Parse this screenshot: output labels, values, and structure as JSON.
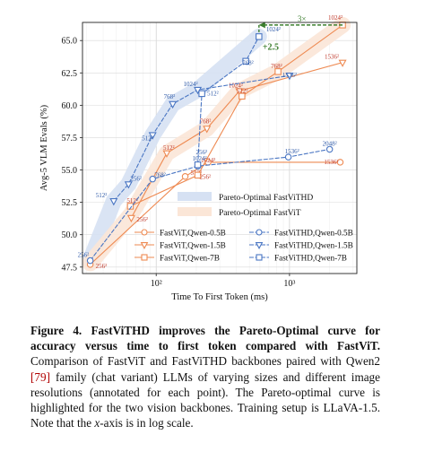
{
  "chart_data": {
    "type": "line",
    "xlabel": "Time To First Token (ms)",
    "ylabel": "Avg-5 VLM Evals (%)",
    "xscale": "log",
    "xlim": [
      28,
      3200
    ],
    "ylim": [
      47.0,
      66.4
    ],
    "xticks": [
      {
        "value": 100,
        "label": "10²"
      },
      {
        "value": 1000,
        "label": "10³"
      }
    ],
    "yticks": [
      47.5,
      50.0,
      52.5,
      55.0,
      57.5,
      60.0,
      62.5,
      65.0
    ],
    "pareto_regions": [
      {
        "name": "Pareto-Optimal FastViTHD",
        "color": "#d6e1f3",
        "points": [
          [
            32,
            48.0
          ],
          [
            48,
            52.6
          ],
          [
            62,
            53.9
          ],
          [
            94,
            57.7
          ],
          [
            133,
            60.1
          ],
          [
            205,
            61.2
          ],
          [
            590,
            65.3
          ]
        ]
      },
      {
        "name": "Pareto-Optimal FastViT",
        "color": "#fbe6d7",
        "points": [
          [
            32,
            47.8
          ],
          [
            65,
            51.6
          ],
          [
            120,
            56.3
          ],
          [
            240,
            58.2
          ],
          [
            420,
            61.1
          ],
          [
            820,
            62.6
          ],
          [
            2500,
            66.2
          ]
        ]
      }
    ],
    "series": [
      {
        "name": "FastViT,Qwen-0.5B",
        "color": "#ee8a52",
        "marker": "circle",
        "dash": false,
        "points": [
          {
            "x": 32,
            "y": 47.7,
            "label": "256²"
          },
          {
            "x": 165,
            "y": 54.5,
            "label": "512²"
          },
          {
            "x": 245,
            "y": 55.6,
            "label": "1024²"
          },
          {
            "x": 2400,
            "y": 55.6,
            "label": "1536²"
          }
        ]
      },
      {
        "name": "FastViT,Qwen-1.5B",
        "color": "#ee8a52",
        "marker": "triangle",
        "dash": false,
        "points": [
          {
            "x": 65,
            "y": 51.3,
            "label": "256²"
          },
          {
            "x": 120,
            "y": 56.3,
            "label": "512²"
          },
          {
            "x": 240,
            "y": 58.2,
            "label": "768²"
          },
          {
            "x": 420,
            "y": 61.1,
            "label": "1024²"
          },
          {
            "x": 2500,
            "y": 63.3,
            "label": "1536²"
          }
        ]
      },
      {
        "name": "FastViT,Qwen-7B",
        "color": "#ee8a52",
        "marker": "square",
        "dash": false,
        "points": [
          {
            "x": 64,
            "y": 52.2,
            "label": "512²"
          },
          {
            "x": 205,
            "y": 54.6,
            "label": "256²"
          },
          {
            "x": 440,
            "y": 60.7,
            "label": "512²"
          },
          {
            "x": 820,
            "y": 62.6,
            "label": "768²"
          },
          {
            "x": 2500,
            "y": 66.2,
            "label": "1024²"
          }
        ]
      },
      {
        "name": "FastViTHD,Qwen-0.5B",
        "color": "#4a76c3",
        "marker": "circle",
        "dash": true,
        "points": [
          {
            "x": 32,
            "y": 48.0,
            "label": "256²"
          },
          {
            "x": 94,
            "y": 54.3,
            "label": "768²"
          },
          {
            "x": 205,
            "y": 55.3,
            "label": "1024²"
          },
          {
            "x": 980,
            "y": 56.0,
            "label": "1536²"
          },
          {
            "x": 2000,
            "y": 56.6,
            "label": "2048²"
          }
        ]
      },
      {
        "name": "FastViTHD,Qwen-1.5B",
        "color": "#4a76c3",
        "marker": "triangle",
        "dash": true,
        "points": [
          {
            "x": 48,
            "y": 52.6,
            "label": "512²"
          },
          {
            "x": 62,
            "y": 53.9,
            "label": "256²"
          },
          {
            "x": 94,
            "y": 57.7,
            "label": "512²"
          },
          {
            "x": 133,
            "y": 60.1,
            "label": "768²"
          },
          {
            "x": 205,
            "y": 61.2,
            "label": "1024²"
          },
          {
            "x": 1000,
            "y": 62.3,
            "label": "1536²"
          }
        ]
      },
      {
        "name": "FastViTHD,Qwen-7B",
        "color": "#4a76c3",
        "marker": "square",
        "dash": true,
        "points": [
          {
            "x": 205,
            "y": 55.4,
            "label": "256²"
          },
          {
            "x": 220,
            "y": 60.9,
            "label": "512²"
          },
          {
            "x": 470,
            "y": 63.4,
            "label": "768²"
          },
          {
            "x": 590,
            "y": 65.3,
            "label": "1024²"
          }
        ]
      }
    ],
    "annotations": [
      {
        "text": "3×",
        "color": "#3a7d2c"
      },
      {
        "text": "+2.5",
        "color": "#3a7d2c"
      }
    ],
    "legend_placement": "lower-right",
    "grid": true
  },
  "caption": {
    "figure_label": "Figure 4.",
    "bold_text": "FastViTHD improves the Pareto-Optimal curve for accuracy versus time to first token compared with FastViT.",
    "body_before_ref": " Comparison of FastViT and FastViTHD backbones paired with Qwen2 ",
    "ref": "[79]",
    "body_after_ref": " family (chat variant) LLMs of varying sizes and different image resolutions (annotated for each point). The Pareto-optimal curve is highlighted for the two vision backbones. Training setup is LLaVA-1.5. Note that the ",
    "axis_var": "x",
    "body_end": "-axis is in log scale."
  }
}
